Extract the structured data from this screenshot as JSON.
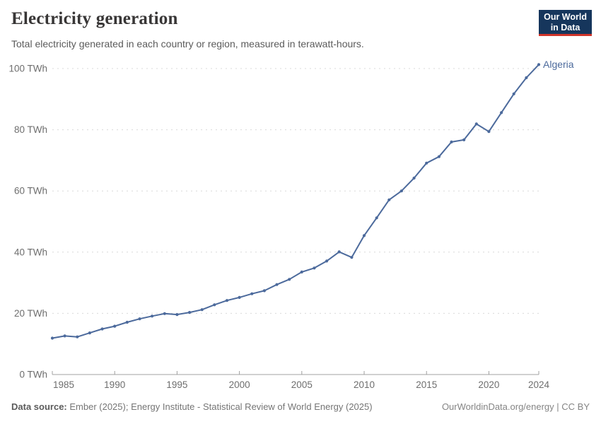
{
  "header": {
    "title": "Electricity generation",
    "subtitle": "Total electricity generated in each country or region, measured in terawatt-hours."
  },
  "logo": {
    "line1": "Our World",
    "line2": "in Data",
    "bg_color": "#16365c",
    "accent_color": "#d0342a"
  },
  "chart_data": {
    "type": "line",
    "title": "Electricity generation",
    "xlabel": "",
    "ylabel": "",
    "y_unit": "TWh",
    "xlim": [
      1985,
      2024
    ],
    "ylim": [
      0,
      100
    ],
    "grid": "dashed-horizontal",
    "x_ticks": [
      1985,
      1990,
      1995,
      2000,
      2005,
      2010,
      2015,
      2020,
      2024
    ],
    "y_ticks": [
      0,
      20,
      40,
      60,
      80,
      100
    ],
    "series": [
      {
        "name": "Algeria",
        "color": "#4c6a9c",
        "x": [
          1985,
          1986,
          1987,
          1988,
          1989,
          1990,
          1991,
          1992,
          1993,
          1994,
          1995,
          1996,
          1997,
          1998,
          1999,
          2000,
          2001,
          2002,
          2003,
          2004,
          2005,
          2006,
          2007,
          2008,
          2009,
          2010,
          2011,
          2012,
          2013,
          2014,
          2015,
          2016,
          2017,
          2018,
          2019,
          2020,
          2021,
          2022,
          2023,
          2024
        ],
        "y": [
          11.9,
          12.6,
          12.3,
          13.6,
          14.9,
          15.8,
          17.1,
          18.2,
          19.1,
          19.9,
          19.6,
          20.3,
          21.2,
          22.8,
          24.2,
          25.2,
          26.4,
          27.4,
          29.4,
          31.1,
          33.5,
          34.8,
          37.1,
          40.1,
          38.3,
          45.4,
          51.2,
          57.1,
          60.0,
          64.2,
          69.1,
          71.2,
          76.0,
          76.7,
          81.9,
          79.4,
          85.6,
          91.7,
          97.0,
          101.3
        ]
      }
    ],
    "end_label": "Algeria",
    "colors": {
      "gridline": "#d9d9d9",
      "axis": "#a0a0a0",
      "tick_label": "#6e6e6e"
    }
  },
  "footer": {
    "source_label": "Data source:",
    "source_text": " Ember (2025); Energy Institute - Statistical Review of World Energy (2025)",
    "right_text": "OurWorldinData.org/energy | CC BY"
  }
}
